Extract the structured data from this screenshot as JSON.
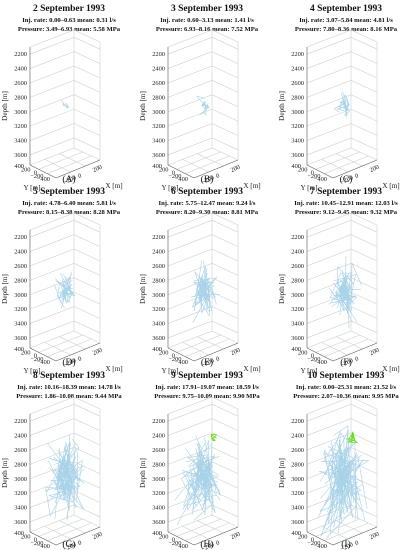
{
  "labels": {
    "inj_prefix": "Inj. rate:",
    "press_prefix": "Pressure:",
    "mean_word": "mean:",
    "ylabel": "Depth [m]",
    "ylabel_y": "Y [m]",
    "xlabel": "X [m]",
    "depth_ticks": [
      "2200",
      "2400",
      "2600",
      "2800",
      "3000",
      "3200",
      "3400",
      "3600"
    ],
    "y_ticks": [
      "400",
      "200",
      "0",
      "−200",
      "−400"
    ],
    "x_ticks": [
      "−200",
      "0",
      "200"
    ]
  },
  "colors": {
    "cluster": "#a8d2e8",
    "new_cluster": "#66dd22",
    "axis": "#555555"
  },
  "panels": [
    {
      "letter": "(A)",
      "title": "2 September 1993",
      "inj_range": "0.00–0.63",
      "inj_mean": "0.31 l/s",
      "p_range": "3.49–6.93",
      "p_mean": "5.58 MPa",
      "events_level": 0.02,
      "new_events_level": 0
    },
    {
      "letter": "(B)",
      "title": "3 September 1993",
      "inj_range": "0.60–3.13",
      "inj_mean": "1.41 l/s",
      "p_range": "6.93–8.16",
      "p_mean": "7.52 MPa",
      "events_level": 0.1,
      "new_events_level": 0
    },
    {
      "letter": "(C)",
      "title": "4 September 1993",
      "inj_range": "3.07–5.84",
      "inj_mean": "4.81 l/s",
      "p_range": "7.80–8.36",
      "p_mean": "8.16 MPa",
      "events_level": 0.2,
      "new_events_level": 0
    },
    {
      "letter": "(D)",
      "title": "5 September 1993",
      "inj_range": "4.78–6.40",
      "inj_mean": "5.81 l/s",
      "p_range": "8.15–8.38",
      "p_mean": "8.28 MPa",
      "events_level": 0.32,
      "new_events_level": 0
    },
    {
      "letter": "(E)",
      "title": "6 September 1993",
      "inj_range": "5.75–12.47",
      "inj_mean": "9.24 l/s",
      "p_range": "8.20–9.30",
      "p_mean": "8.81 MPa",
      "events_level": 0.5,
      "new_events_level": 0
    },
    {
      "letter": "(F)",
      "title": "7 September 1993",
      "inj_range": "10.45–12.91",
      "inj_mean": "12.03 l/s",
      "p_range": "9.12–9.45",
      "p_mean": "9.32 MPa",
      "events_level": 0.6,
      "new_events_level": 0
    },
    {
      "letter": "(G)",
      "title": "8 September 1993",
      "inj_range": "10.16–18.39",
      "inj_mean": "14.78 l/s",
      "p_range": "1.86–10.08",
      "p_mean": "9.44 MPa",
      "events_level": 0.78,
      "new_events_level": 0
    },
    {
      "letter": "(H)",
      "title": "9 September 1993",
      "inj_range": "17.91–19.07",
      "inj_mean": "18.59 l/s",
      "p_range": "9.75–10.09",
      "p_mean": "9.90 MPa",
      "events_level": 0.88,
      "new_events_level": 0.4
    },
    {
      "letter": "(I)",
      "title": "10 September 1993",
      "inj_range": "0.00–25.31",
      "inj_mean": "21.52 l/s",
      "p_range": "2.07–10.36",
      "p_mean": "9.95 MPa",
      "events_level": 1.0,
      "new_events_level": 1.0
    }
  ]
}
